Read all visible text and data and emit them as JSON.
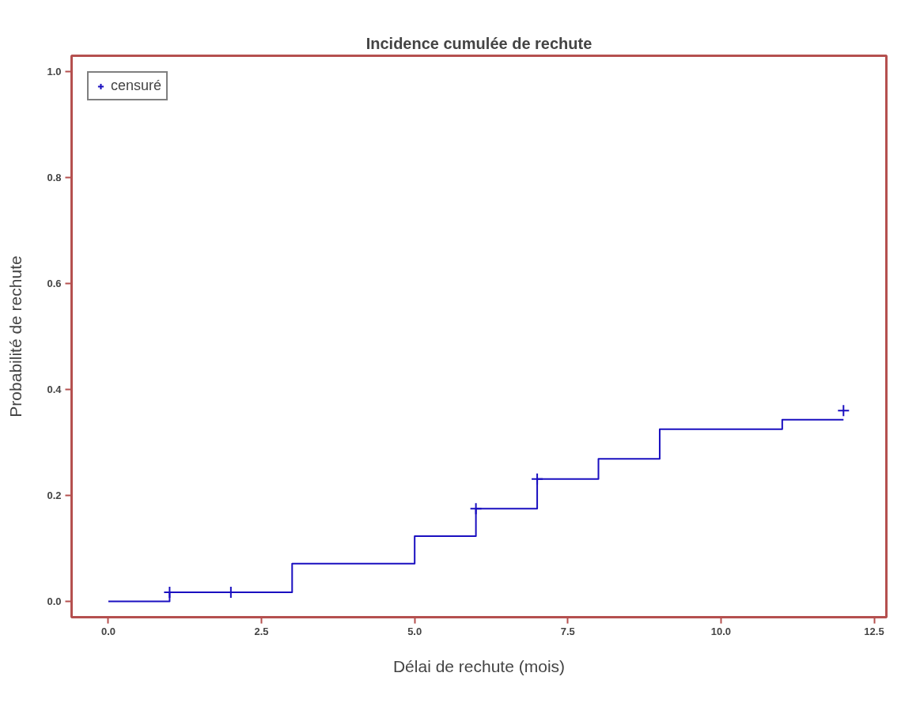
{
  "chart_data": {
    "type": "step",
    "title": "Incidence cumulée de rechute",
    "xlabel": "Délai de rechute (mois)",
    "ylabel": "Probabilité de rechute",
    "series": [
      {
        "color": "#1a0fc0",
        "x": [
          0,
          1,
          3,
          5,
          6,
          7,
          8,
          9,
          11,
          12
        ],
        "values": [
          0,
          0.017,
          0.071,
          0.123,
          0.175,
          0.231,
          0.269,
          0.325,
          0.343,
          0.343
        ]
      },
      {
        "type": "scatter",
        "name": "censuré",
        "color": "#1a0fc0",
        "marker": "cross",
        "x": [
          1,
          2,
          6,
          7,
          12
        ],
        "values": [
          0.017,
          0.017,
          0.175,
          0.231,
          0.36
        ]
      }
    ],
    "xlim": [
      -0.6,
      12.7
    ],
    "ylim": [
      -0.03,
      1.03
    ],
    "xticks": [
      {
        "value": 0,
        "label": "0.0"
      },
      2.5,
      {
        "value": 5,
        "label": "5.0"
      },
      7.5,
      {
        "value": 10,
        "label": "10.0"
      },
      12.5
    ],
    "yticks": [
      {
        "value": 0,
        "label": "0.0"
      },
      0.2,
      0.4,
      0.6,
      0.8,
      {
        "value": 1,
        "label": "1.0"
      }
    ],
    "grid": false,
    "legend": "top left"
  }
}
